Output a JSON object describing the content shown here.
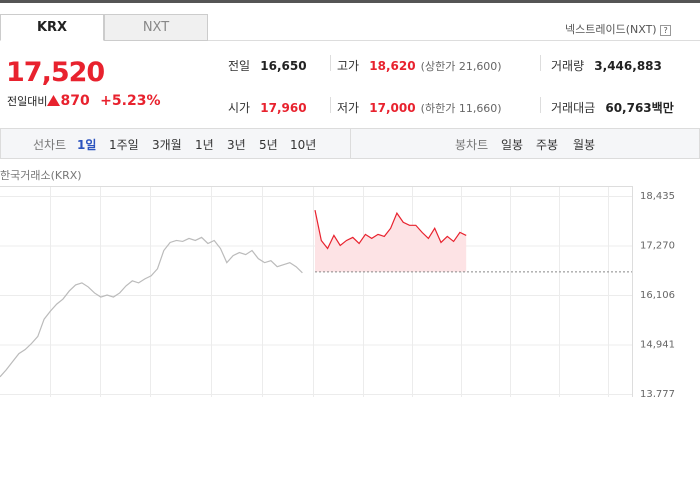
{
  "tabs": [
    "KRX",
    "NXT"
  ],
  "nxt_link": "넥스트레이드(NXT)",
  "price": {
    "current": "17,520",
    "change_label": "전일대비",
    "change": "870",
    "change_rate": "+5.23%"
  },
  "stats": [
    {
      "label": "전일",
      "value": "16,650"
    },
    {
      "label": "고가",
      "value": "18,620",
      "note": "(상한가 21,600)"
    },
    {
      "label": "거래량",
      "value": "3,446,883"
    },
    {
      "label": "시가",
      "value": "17,960"
    },
    {
      "label": "저가",
      "value": "17,000",
      "note": "(하한가 11,660)"
    },
    {
      "label": "거래대금",
      "value": "60,763",
      "unit": "백만"
    }
  ],
  "toolbar": {
    "line_chart": "선차트",
    "periods": [
      "1일",
      "1주일",
      "3개월",
      "1년",
      "3년",
      "5년",
      "10년"
    ],
    "candle_chart": "봉차트",
    "candle_periods": [
      "일봉",
      "주봉",
      "월봉"
    ]
  },
  "chart_data": {
    "type": "line",
    "subtitle": "한국거래소(KRX)",
    "series": [
      {
        "color": "#bbbbbb",
        "values": [
          14181,
          14347,
          14538,
          14728,
          14823,
          14965,
          15132,
          15536,
          15726,
          15892,
          16011,
          16201,
          16344,
          16391,
          16296,
          16154,
          16058,
          16106,
          16058,
          16154,
          16320,
          16439,
          16391,
          16486,
          16558,
          16724,
          17152,
          17342,
          17389,
          17366,
          17437,
          17389,
          17461,
          17318,
          17389,
          17199,
          16867,
          17033,
          17104,
          17057,
          17152,
          16962,
          16867,
          16914,
          16771,
          16819,
          16867,
          16771,
          16629,
          null,
          null,
          null,
          null,
          null,
          null,
          null,
          null,
          null,
          null,
          null,
          null,
          null,
          null,
          null,
          null,
          null,
          null,
          null,
          null,
          null,
          null,
          null,
          null,
          null,
          null
        ]
      },
      {
        "color": "#e8222e",
        "fill": "#fde3e5",
        "values": [
          null,
          null,
          null,
          null,
          null,
          null,
          null,
          null,
          null,
          null,
          null,
          null,
          null,
          null,
          null,
          null,
          null,
          null,
          null,
          null,
          null,
          null,
          null,
          null,
          null,
          null,
          null,
          null,
          null,
          null,
          null,
          null,
          null,
          null,
          null,
          null,
          null,
          null,
          null,
          null,
          null,
          null,
          null,
          null,
          null,
          null,
          null,
          null,
          null,
          null,
          18102,
          17389,
          17199,
          17508,
          17271,
          17389,
          17461,
          17318,
          17532,
          17437,
          17532,
          17484,
          17675,
          18031,
          17817,
          17746,
          17746,
          17579,
          17437,
          17675,
          17342,
          17484,
          17366,
          17579,
          17508
        ]
      }
    ],
    "baseline": 16650,
    "ylim": [
      13777,
      18435
    ],
    "yticks": [
      {
        "value": 18435,
        "label": "18,435"
      },
      {
        "value": 17270,
        "label": "17,270"
      },
      {
        "value": 16106,
        "label": "16,106"
      },
      {
        "value": 14941,
        "label": "14,941"
      },
      {
        "value": 13777,
        "label": "13,777"
      }
    ],
    "grid": true
  }
}
